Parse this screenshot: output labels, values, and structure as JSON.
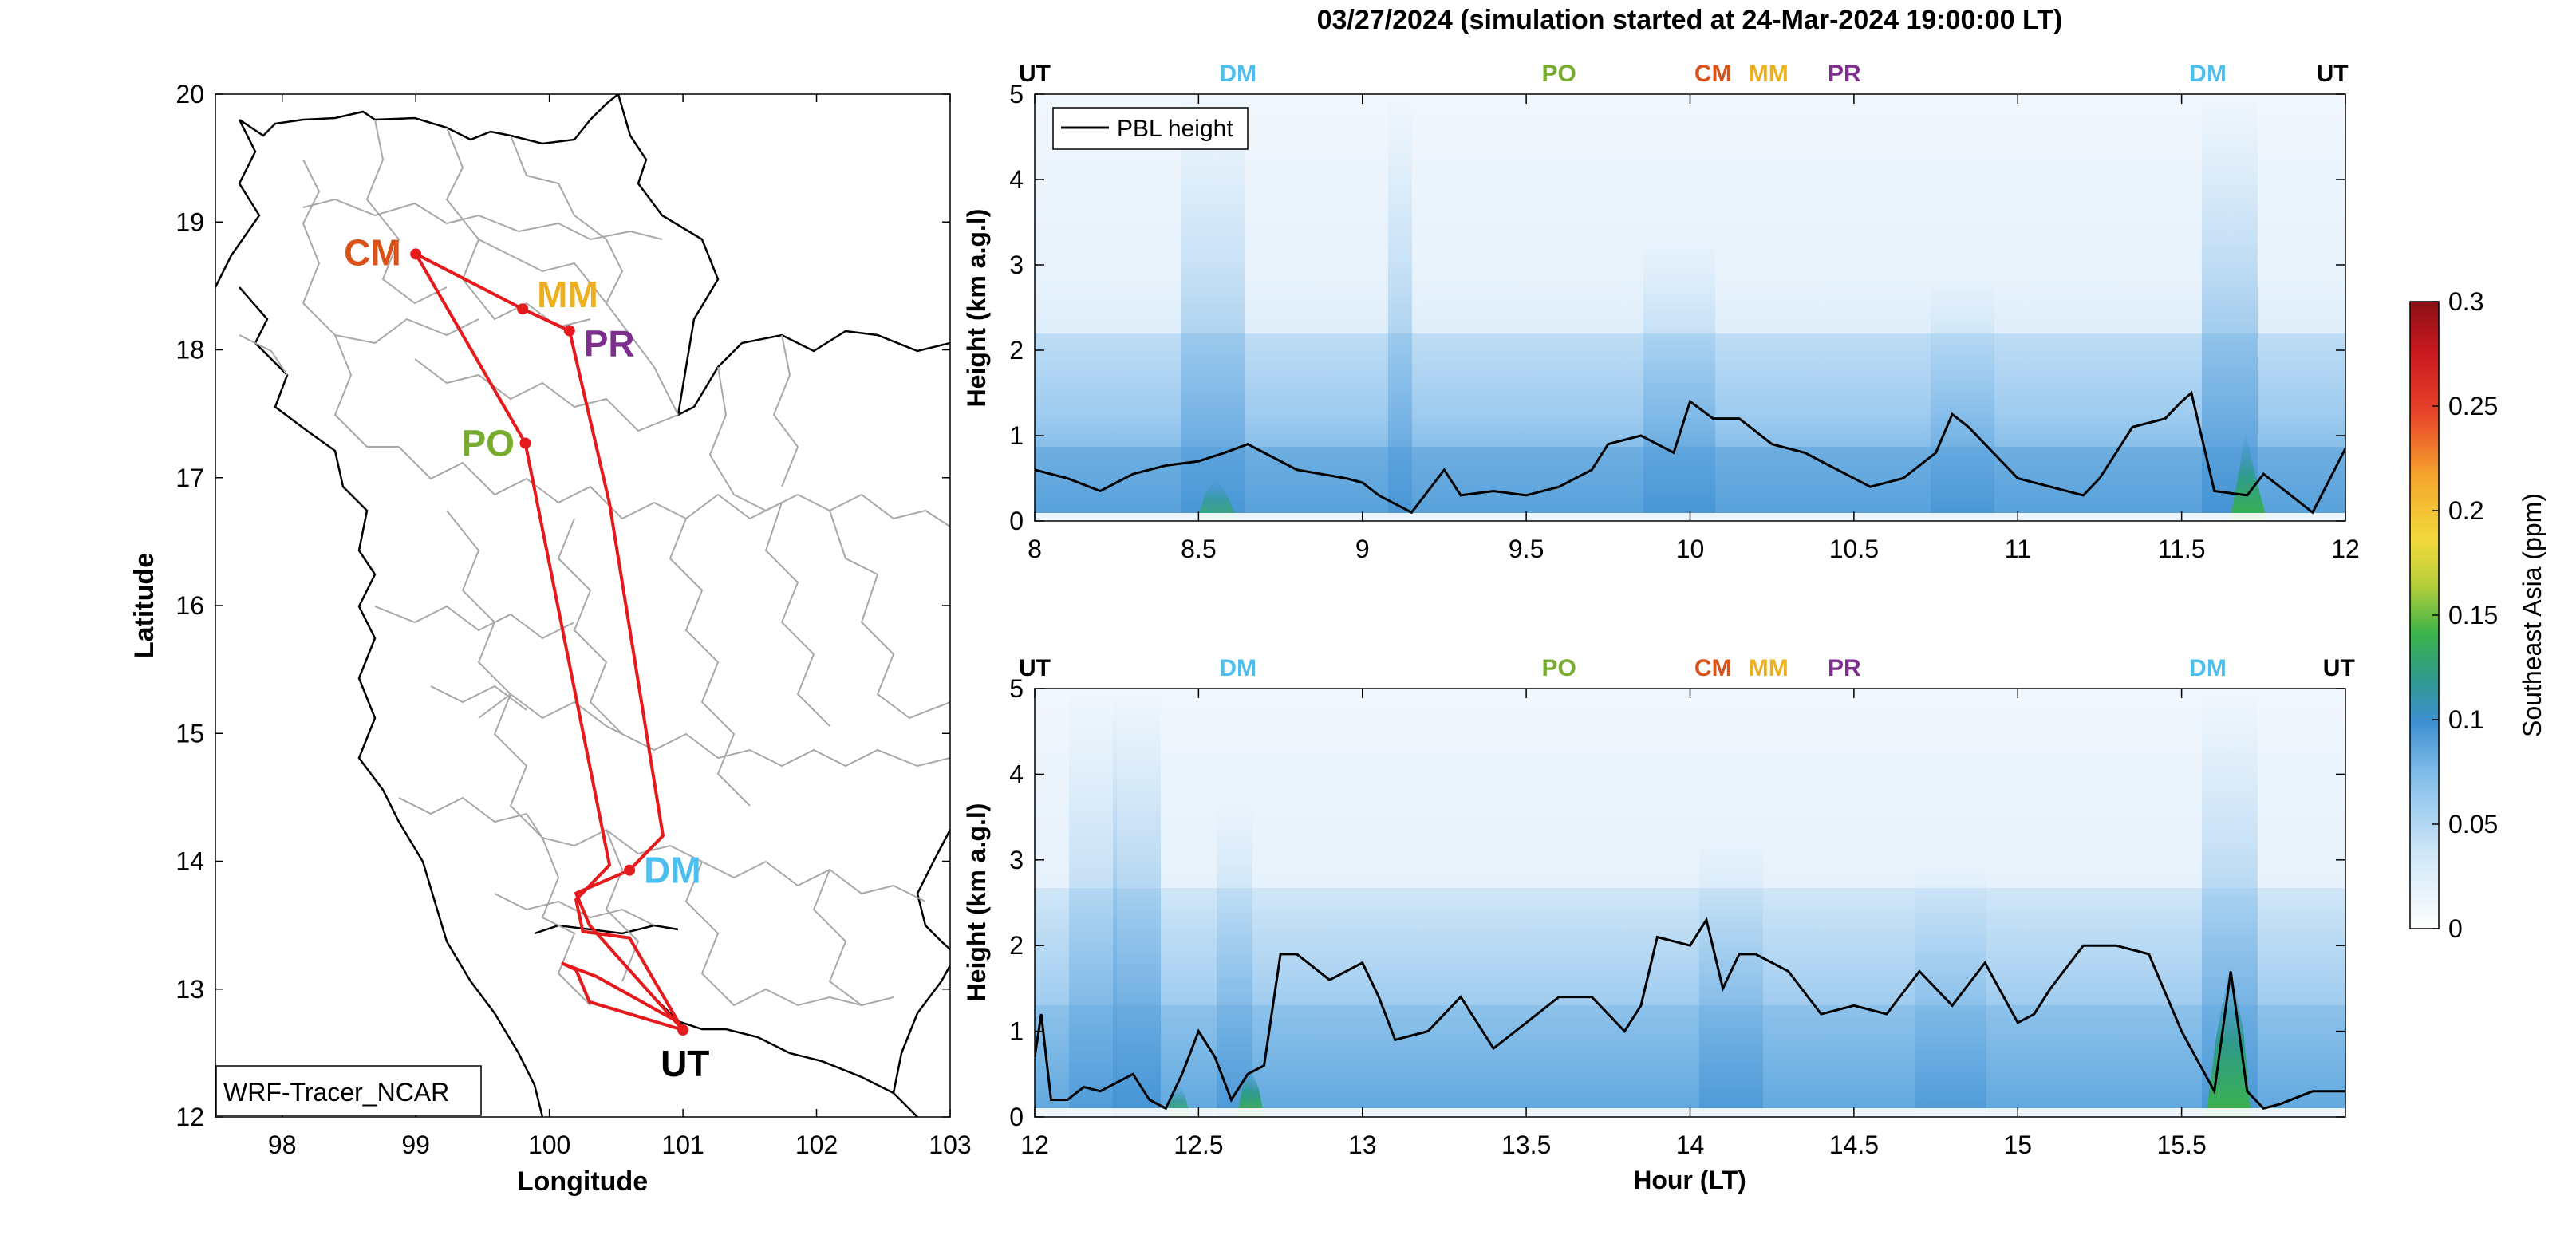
{
  "title": "03/27/2024 (simulation started at 24-Mar-2024 19:00:00 LT)",
  "map": {
    "xlabel": "Longitude",
    "ylabel": "Latitude",
    "xticks": [
      98,
      99,
      100,
      101,
      102,
      103
    ],
    "yticks": [
      12,
      13,
      14,
      15,
      16,
      17,
      18,
      19,
      20
    ],
    "xlim": [
      97.5,
      103
    ],
    "ylim": [
      12,
      20
    ],
    "model_label": "WRF-Tracer_NCAR",
    "route_color": "#e41a1c",
    "sites": [
      {
        "code": "CM",
        "lon": 99.0,
        "lat": 18.75,
        "color": "#d95319"
      },
      {
        "code": "MM",
        "lon": 99.8,
        "lat": 18.32,
        "color": "#edb120"
      },
      {
        "code": "PR",
        "lon": 100.15,
        "lat": 18.15,
        "color": "#7e2f8e"
      },
      {
        "code": "PO",
        "lon": 99.82,
        "lat": 17.27,
        "color": "#77ac30"
      },
      {
        "code": "DM",
        "lon": 100.6,
        "lat": 13.93,
        "color": "#4dbeee"
      },
      {
        "code": "UT",
        "lon": 101.0,
        "lat": 12.68,
        "color": "#000000"
      }
    ]
  },
  "panels": [
    {
      "xlim": [
        8,
        12
      ],
      "xticks": [
        "8",
        "8.5",
        "9",
        "9.5",
        "10",
        "10.5",
        "11",
        "11.5",
        "12"
      ],
      "ylabel": "Height (km a.g.l)",
      "yticks": [
        "0",
        "1",
        "2",
        "3",
        "4",
        "5"
      ],
      "site_markers": [
        {
          "code": "UT",
          "hour": 8.0,
          "color": "#000000"
        },
        {
          "code": "DM",
          "hour": 8.62,
          "color": "#4dbeee"
        },
        {
          "code": "PO",
          "hour": 9.6,
          "color": "#77ac30"
        },
        {
          "code": "CM",
          "hour": 10.07,
          "color": "#d95319"
        },
        {
          "code": "MM",
          "hour": 10.3,
          "color": "#edb120"
        },
        {
          "code": "PR",
          "hour": 10.42,
          "color": "#7e2f8e"
        },
        {
          "code": "DM",
          "hour": 11.58,
          "color": "#4dbeee"
        },
        {
          "code": "UT",
          "hour": 11.96,
          "color": "#000000"
        }
      ],
      "legend": "PBL height"
    },
    {
      "xlim": [
        12,
        16
      ],
      "xticks": [
        "12",
        "12.5",
        "13",
        "13.5",
        "14",
        "14.5",
        "15",
        "15.5"
      ],
      "ylabel": "Height (km a.g.l)",
      "yticks": [
        "0",
        "1",
        "2",
        "3",
        "4",
        "5"
      ],
      "xlabel": "Hour (LT)",
      "site_markers": [
        {
          "code": "UT",
          "hour": 12.0,
          "color": "#000000"
        },
        {
          "code": "DM",
          "hour": 12.62,
          "color": "#4dbeee"
        },
        {
          "code": "PO",
          "hour": 13.6,
          "color": "#77ac30"
        },
        {
          "code": "CM",
          "hour": 14.07,
          "color": "#d95319"
        },
        {
          "code": "MM",
          "hour": 14.3,
          "color": "#edb120"
        },
        {
          "code": "PR",
          "hour": 14.42,
          "color": "#7e2f8e"
        },
        {
          "code": "DM",
          "hour": 15.58,
          "color": "#4dbeee"
        },
        {
          "code": "UT",
          "hour": 15.98,
          "color": "#000000"
        }
      ]
    }
  ],
  "colorbar": {
    "label": "Southeast Asia (ppm)",
    "ticks": [
      "0",
      "0.05",
      "0.1",
      "0.15",
      "0.2",
      "0.25",
      "0.3"
    ],
    "range": [
      0,
      0.3
    ]
  },
  "chart_data": [
    {
      "type": "line",
      "title": "03/27/2024 (simulation started at 24-Mar-2024 19:00:00 LT)",
      "xlabel": "",
      "ylabel": "Height (km a.g.l)",
      "xlim": [
        8,
        12
      ],
      "ylim": [
        0,
        5
      ],
      "series": [
        {
          "name": "PBL height",
          "x": [
            8.0,
            8.1,
            8.2,
            8.3,
            8.4,
            8.5,
            8.58,
            8.65,
            8.8,
            8.95,
            9.0,
            9.05,
            9.15,
            9.25,
            9.3,
            9.4,
            9.5,
            9.6,
            9.7,
            9.75,
            9.85,
            9.95,
            10.0,
            10.07,
            10.15,
            10.25,
            10.35,
            10.45,
            10.55,
            10.65,
            10.75,
            10.8,
            10.85,
            10.95,
            11.0,
            11.1,
            11.2,
            11.25,
            11.35,
            11.45,
            11.5,
            11.53,
            11.6,
            11.7,
            11.75,
            11.8,
            11.9,
            12.0
          ],
          "y": [
            0.6,
            0.5,
            0.35,
            0.55,
            0.65,
            0.7,
            0.8,
            0.9,
            0.6,
            0.5,
            0.45,
            0.3,
            0.1,
            0.6,
            0.3,
            0.35,
            0.3,
            0.4,
            0.6,
            0.9,
            1.0,
            0.8,
            1.4,
            1.2,
            1.2,
            0.9,
            0.8,
            0.6,
            0.4,
            0.5,
            0.8,
            1.25,
            1.1,
            0.7,
            0.5,
            0.4,
            0.3,
            0.5,
            1.1,
            1.2,
            1.4,
            1.5,
            0.35,
            0.3,
            0.55,
            0.4,
            0.1,
            0.85
          ]
        }
      ],
      "colorbar": {
        "label": "Southeast Asia (ppm)",
        "range": [
          0,
          0.3
        ]
      }
    },
    {
      "type": "line",
      "xlabel": "Hour (LT)",
      "ylabel": "Height (km a.g.l)",
      "xlim": [
        12,
        16
      ],
      "ylim": [
        0,
        5
      ],
      "series": [
        {
          "name": "PBL height",
          "x": [
            12.0,
            12.02,
            12.05,
            12.1,
            12.15,
            12.2,
            12.3,
            12.35,
            12.4,
            12.45,
            12.5,
            12.55,
            12.6,
            12.65,
            12.7,
            12.75,
            12.8,
            12.9,
            13.0,
            13.05,
            13.1,
            13.2,
            13.3,
            13.4,
            13.5,
            13.6,
            13.7,
            13.8,
            13.85,
            13.9,
            14.0,
            14.05,
            14.1,
            14.15,
            14.2,
            14.3,
            14.4,
            14.5,
            14.6,
            14.7,
            14.8,
            14.9,
            15.0,
            15.05,
            15.1,
            15.2,
            15.3,
            15.4,
            15.5,
            15.6,
            15.65,
            15.7,
            15.75,
            15.8,
            15.9,
            16.0
          ],
          "y": [
            0.7,
            1.2,
            0.2,
            0.2,
            0.35,
            0.3,
            0.5,
            0.2,
            0.1,
            0.5,
            1.0,
            0.7,
            0.2,
            0.5,
            0.6,
            1.9,
            1.9,
            1.6,
            1.8,
            1.4,
            0.9,
            1.0,
            1.4,
            0.8,
            1.1,
            1.4,
            1.4,
            1.0,
            1.3,
            2.1,
            2.0,
            2.3,
            1.5,
            1.9,
            1.9,
            1.7,
            1.2,
            1.3,
            1.2,
            1.7,
            1.3,
            1.8,
            1.1,
            1.2,
            1.5,
            2.0,
            2.0,
            1.9,
            1.0,
            0.3,
            1.7,
            0.3,
            0.1,
            0.15,
            0.3,
            0.3
          ]
        }
      ],
      "colorbar": {
        "label": "Southeast Asia (ppm)",
        "range": [
          0,
          0.3
        ]
      }
    }
  ]
}
